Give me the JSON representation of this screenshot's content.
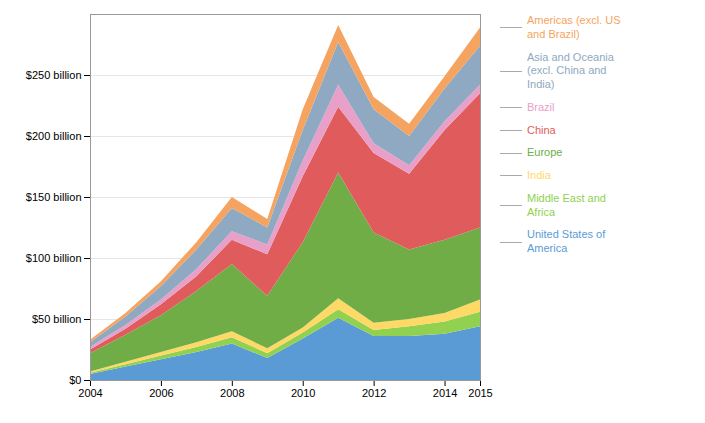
{
  "chart_data": {
    "type": "area",
    "stacked": true,
    "x": [
      2004,
      2005,
      2006,
      2007,
      2008,
      2009,
      2010,
      2011,
      2012,
      2013,
      2014,
      2015
    ],
    "series": [
      {
        "name": "United States of\nAmerica",
        "color": "#5b9bd5",
        "values": [
          5,
          11,
          17,
          23,
          30,
          18,
          34,
          51,
          36,
          36,
          38,
          44
        ]
      },
      {
        "name": "Middle East and\nAfrica",
        "color": "#92d050",
        "values": [
          1,
          2,
          3,
          4,
          5,
          4,
          5,
          7,
          5,
          8,
          10,
          12
        ]
      },
      {
        "name": "India",
        "color": "#ffd966",
        "values": [
          1,
          2,
          3,
          4,
          5,
          4,
          4,
          9,
          6,
          6,
          7,
          10
        ]
      },
      {
        "name": "Europe",
        "color": "#70ad47",
        "values": [
          15,
          22,
          30,
          42,
          55,
          43,
          70,
          103,
          74,
          57,
          60,
          59
        ]
      },
      {
        "name": "China",
        "color": "#e05c5c",
        "values": [
          3,
          5,
          9,
          12,
          20,
          34,
          54,
          54,
          65,
          62,
          90,
          110
        ]
      },
      {
        "name": "Brazil",
        "color": "#e8a0c8",
        "values": [
          2,
          3,
          4,
          6,
          7,
          8,
          13,
          18,
          8,
          7,
          7,
          7
        ]
      },
      {
        "name": "Asia and Oceania\n(excl. China and\nIndia)",
        "color": "#8ea9c1",
        "values": [
          4,
          7,
          11,
          16,
          19,
          14,
          25,
          35,
          28,
          24,
          27,
          32
        ]
      },
      {
        "name": "Americas (excl. US\nand Brazil)",
        "color": "#f4a460",
        "values": [
          2,
          3,
          4,
          6,
          9,
          7,
          17,
          14,
          10,
          10,
          10,
          15
        ]
      }
    ],
    "xlim": [
      2004,
      2015
    ],
    "xticks": [
      2004,
      2006,
      2008,
      2010,
      2012,
      2014,
      2015
    ],
    "ylim": [
      0,
      300
    ],
    "yticks": [
      {
        "value": 0,
        "label": "$0"
      },
      {
        "value": 50,
        "label": "$50 billion"
      },
      {
        "value": 100,
        "label": "$100 billion"
      },
      {
        "value": 150,
        "label": "$150 billion"
      },
      {
        "value": 200,
        "label": "$200 billion"
      },
      {
        "value": 250,
        "label": "$250 billion"
      }
    ],
    "grid": true,
    "legend": "right"
  }
}
